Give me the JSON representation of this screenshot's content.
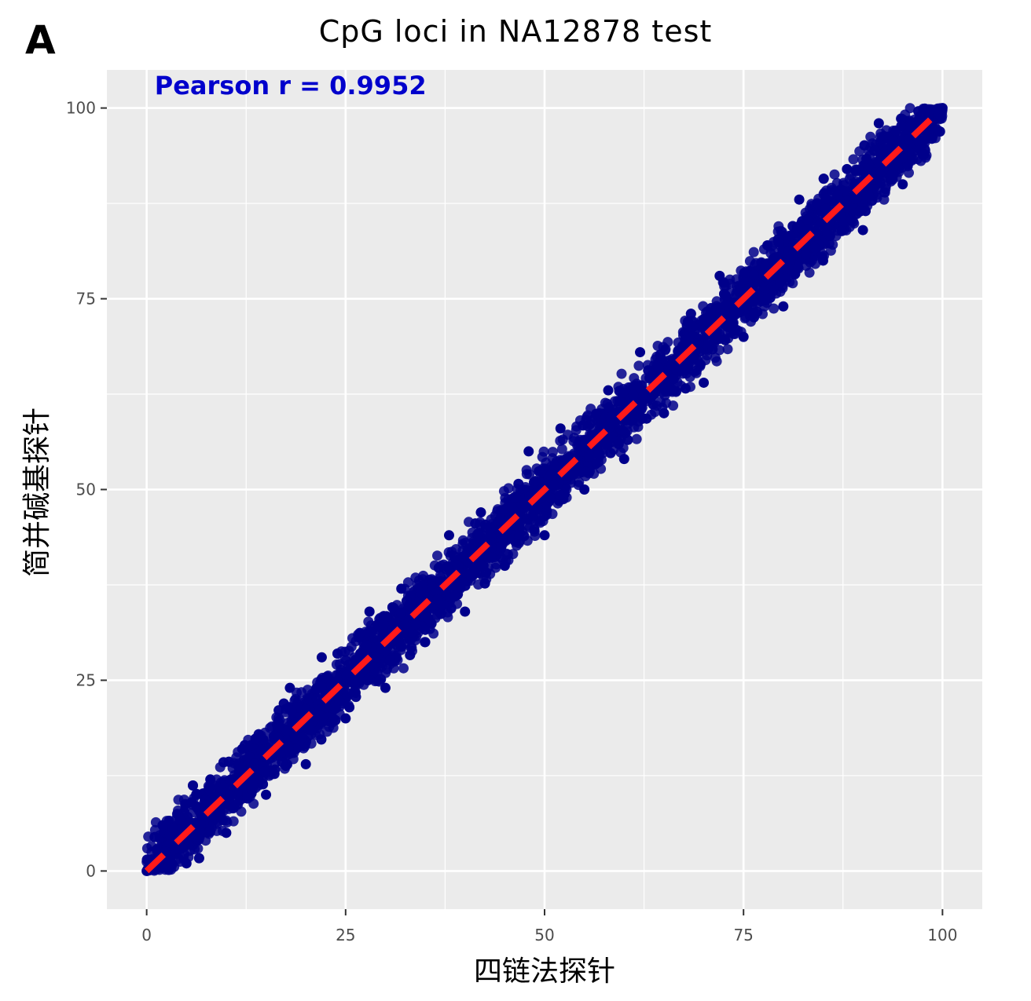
{
  "panel_label": "A",
  "colors": {
    "panel_bg": "#ebebeb",
    "grid": "#ffffff",
    "points": "#00008b",
    "fit_line": "#ff1a1a",
    "annotation": "#0000cc",
    "tick_text": "#4d4d4d"
  },
  "chart_data": {
    "type": "scatter",
    "title": "CpG loci in NA12878 test",
    "xlabel": "四链法探针",
    "ylabel": "简并碱基探针",
    "xlim": [
      -5,
      105
    ],
    "ylim": [
      -5,
      105
    ],
    "x_ticks": [
      0,
      25,
      50,
      75,
      100
    ],
    "y_ticks": [
      0,
      25,
      50,
      75,
      100
    ],
    "x_tick_labels": [
      "0",
      "25",
      "50",
      "75",
      "100"
    ],
    "y_tick_labels": [
      "0",
      "25",
      "50",
      "75",
      "100"
    ],
    "grid": true,
    "annotation": "Pearson r = 0.9952",
    "series": [
      {
        "marker": "circle",
        "band_half_width": 6,
        "x_range": [
          0,
          100
        ],
        "y_range": [
          0,
          100
        ],
        "points": [
          [
            0,
            0
          ],
          [
            2,
            6
          ],
          [
            5,
            1
          ],
          [
            8,
            12
          ],
          [
            10,
            5
          ],
          [
            12,
            16
          ],
          [
            15,
            10
          ],
          [
            18,
            24
          ],
          [
            20,
            14
          ],
          [
            22,
            28
          ],
          [
            25,
            20
          ],
          [
            28,
            34
          ],
          [
            30,
            24
          ],
          [
            32,
            37
          ],
          [
            35,
            30
          ],
          [
            38,
            44
          ],
          [
            40,
            34
          ],
          [
            42,
            47
          ],
          [
            45,
            40
          ],
          [
            48,
            55
          ],
          [
            50,
            44
          ],
          [
            52,
            58
          ],
          [
            55,
            50
          ],
          [
            58,
            63
          ],
          [
            60,
            54
          ],
          [
            62,
            68
          ],
          [
            65,
            60
          ],
          [
            68,
            72
          ],
          [
            70,
            64
          ],
          [
            72,
            78
          ],
          [
            75,
            70
          ],
          [
            78,
            82
          ],
          [
            80,
            74
          ],
          [
            82,
            88
          ],
          [
            85,
            80
          ],
          [
            88,
            92
          ],
          [
            90,
            84
          ],
          [
            92,
            98
          ],
          [
            95,
            90
          ],
          [
            100,
            100
          ]
        ]
      }
    ],
    "reference_line": {
      "style": "dashed",
      "from": [
        0,
        0
      ],
      "to": [
        100,
        100
      ]
    }
  }
}
